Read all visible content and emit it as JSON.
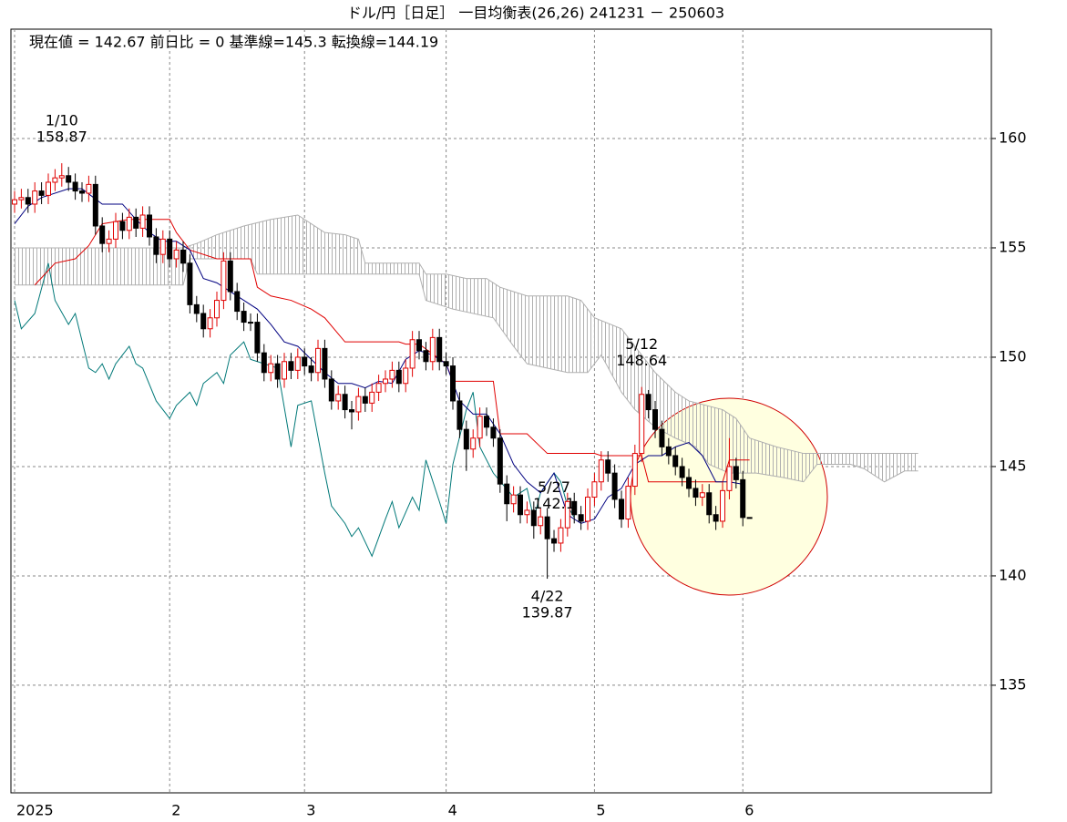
{
  "chart_data": {
    "type": "candlestick",
    "title": "ドル/円［日足］ 一目均衡表(26,26)  241231 － 250603",
    "subtitle": "現在値 = 142.67  前日比 = 0   基準線=145.3   転換線=144.19",
    "xlim": [
      -0.54,
      144.86
    ],
    "ylim": [
      130.08,
      165.0
    ],
    "xticks": [
      {
        "value": 0,
        "label": "2025"
      },
      {
        "value": 23,
        "label": "2"
      },
      {
        "value": 43,
        "label": "3"
      },
      {
        "value": 64,
        "label": "4"
      },
      {
        "value": 86,
        "label": "5"
      },
      {
        "value": 108,
        "label": "6"
      }
    ],
    "yticks": [
      135,
      140,
      145,
      150,
      155,
      160
    ],
    "grid": true,
    "up_color": "#e00000",
    "down_color": "#000000",
    "candles": {
      "x": [
        0,
        1,
        2,
        3,
        4,
        5,
        6,
        7,
        8,
        9,
        10,
        11,
        12,
        13,
        14,
        15,
        16,
        17,
        18,
        19,
        20,
        21,
        22,
        23,
        24,
        25,
        26,
        27,
        28,
        29,
        30,
        31,
        32,
        33,
        34,
        35,
        36,
        37,
        38,
        39,
        40,
        41,
        42,
        43,
        44,
        45,
        46,
        47,
        48,
        49,
        50,
        51,
        52,
        53,
        54,
        55,
        56,
        57,
        58,
        59,
        60,
        61,
        62,
        63,
        64,
        65,
        66,
        67,
        68,
        69,
        70,
        71,
        72,
        73,
        74,
        75,
        76,
        77,
        78,
        79,
        80,
        81,
        82,
        83,
        84,
        85,
        86,
        87,
        88,
        89,
        90,
        91,
        92,
        93,
        94,
        95,
        96,
        97,
        98,
        99,
        100,
        101,
        102,
        103,
        104,
        105,
        106,
        107,
        108,
        109
      ],
      "open": [
        157.0,
        157.2,
        157.3,
        157.0,
        157.6,
        157.4,
        158.0,
        158.2,
        158.3,
        158.0,
        157.6,
        157.5,
        157.9,
        156.0,
        155.2,
        155.4,
        156.2,
        155.8,
        156.4,
        155.9,
        156.5,
        155.5,
        154.7,
        155.4,
        154.5,
        154.9,
        154.3,
        152.4,
        152.0,
        151.3,
        151.8,
        152.6,
        154.4,
        153.0,
        152.1,
        151.6,
        151.6,
        150.2,
        149.3,
        149.7,
        149.0,
        149.8,
        149.4,
        150.0,
        149.6,
        149.3,
        150.4,
        149.0,
        148.0,
        148.3,
        147.6,
        147.5,
        148.2,
        147.9,
        148.4,
        148.8,
        149.0,
        149.4,
        148.8,
        149.5,
        150.8,
        150.3,
        149.8,
        150.9,
        149.8,
        149.6,
        148.0,
        146.7,
        145.8,
        146.3,
        147.3,
        146.8,
        146.3,
        144.2,
        143.3,
        143.7,
        142.8,
        143.0,
        142.3,
        142.7,
        141.7,
        141.5,
        142.2,
        143.4,
        142.8,
        142.5,
        143.6,
        144.3,
        145.3,
        144.7,
        143.5,
        142.6,
        144.1,
        145.6,
        148.3,
        147.6,
        146.7,
        145.9,
        145.5,
        145.0,
        144.5,
        144.0,
        143.6,
        143.8,
        142.8,
        142.5,
        143.9,
        145.0,
        144.4,
        142.67
      ],
      "high": [
        157.6,
        157.7,
        157.7,
        158.0,
        158.0,
        158.4,
        158.6,
        158.87,
        158.7,
        158.4,
        158.0,
        158.3,
        158.3,
        156.4,
        155.8,
        156.6,
        156.6,
        156.8,
        156.8,
        156.9,
        156.9,
        155.9,
        155.8,
        155.8,
        155.3,
        155.3,
        154.7,
        152.8,
        152.4,
        152.2,
        153.0,
        154.8,
        154.8,
        153.4,
        152.5,
        152.0,
        152.0,
        150.6,
        150.1,
        150.1,
        150.2,
        150.2,
        150.4,
        150.4,
        150.0,
        150.8,
        150.8,
        149.4,
        148.7,
        148.7,
        148.0,
        148.6,
        148.6,
        148.8,
        149.2,
        149.4,
        149.8,
        149.8,
        149.9,
        151.2,
        151.2,
        150.7,
        151.3,
        151.3,
        150.2,
        150.0,
        148.4,
        147.1,
        146.7,
        147.7,
        147.7,
        147.2,
        146.7,
        144.6,
        144.1,
        144.1,
        143.4,
        143.4,
        143.1,
        143.1,
        142.1,
        142.6,
        143.8,
        143.8,
        143.2,
        144.0,
        144.7,
        145.7,
        145.7,
        145.1,
        143.9,
        144.5,
        146.0,
        148.64,
        148.5,
        148.0,
        147.1,
        146.3,
        145.9,
        145.4,
        144.9,
        144.4,
        144.2,
        144.2,
        143.2,
        144.3,
        146.3,
        145.4,
        144.8,
        142.67
      ],
      "low": [
        156.6,
        156.8,
        156.6,
        156.6,
        157.0,
        157.0,
        157.6,
        157.8,
        157.6,
        157.2,
        157.1,
        157.1,
        155.6,
        154.8,
        154.8,
        155.0,
        155.4,
        155.4,
        155.5,
        155.5,
        155.1,
        154.3,
        154.3,
        154.1,
        154.1,
        153.9,
        152.0,
        151.6,
        150.9,
        150.9,
        151.4,
        152.2,
        152.6,
        151.7,
        151.2,
        151.2,
        149.8,
        148.9,
        148.9,
        148.6,
        148.6,
        149.0,
        149.0,
        149.2,
        148.9,
        148.9,
        148.6,
        147.6,
        147.6,
        147.2,
        146.7,
        147.1,
        147.5,
        147.5,
        148.0,
        148.4,
        148.6,
        148.4,
        148.4,
        149.1,
        149.9,
        149.4,
        149.4,
        149.4,
        149.2,
        147.6,
        146.3,
        144.8,
        145.4,
        145.9,
        146.4,
        145.9,
        143.8,
        142.5,
        142.9,
        142.4,
        142.4,
        141.7,
        141.9,
        139.87,
        141.1,
        141.1,
        141.8,
        142.4,
        142.1,
        142.1,
        143.2,
        143.9,
        144.3,
        143.1,
        142.2,
        142.2,
        143.7,
        145.2,
        147.2,
        146.3,
        145.5,
        145.1,
        144.6,
        144.1,
        143.6,
        143.2,
        143.2,
        142.4,
        142.1,
        142.2,
        143.5,
        144.0,
        142.27,
        142.67
      ],
      "close": [
        157.2,
        157.3,
        157.0,
        157.6,
        157.4,
        158.0,
        158.2,
        158.3,
        158.0,
        157.6,
        157.5,
        157.9,
        156.0,
        155.2,
        155.4,
        156.2,
        155.8,
        156.4,
        155.9,
        156.5,
        155.5,
        154.7,
        155.4,
        154.5,
        154.9,
        154.3,
        152.4,
        152.0,
        151.3,
        151.8,
        152.6,
        154.4,
        153.0,
        152.1,
        151.6,
        151.6,
        150.2,
        149.3,
        149.7,
        149.0,
        149.8,
        149.4,
        150.0,
        149.6,
        149.3,
        150.4,
        149.0,
        148.0,
        148.3,
        147.6,
        147.5,
        148.2,
        147.9,
        148.4,
        148.8,
        149.0,
        149.4,
        148.8,
        149.5,
        150.8,
        150.3,
        149.8,
        150.9,
        149.8,
        149.6,
        148.0,
        146.7,
        145.8,
        146.3,
        147.3,
        146.8,
        146.3,
        144.2,
        143.3,
        143.7,
        142.8,
        143.0,
        142.3,
        142.7,
        141.7,
        141.5,
        142.2,
        143.4,
        142.8,
        142.5,
        143.6,
        144.3,
        145.3,
        144.7,
        143.5,
        142.6,
        144.1,
        145.6,
        148.3,
        147.6,
        146.7,
        145.9,
        145.5,
        145.0,
        144.5,
        144.0,
        143.6,
        143.8,
        142.8,
        142.5,
        143.9,
        145.0,
        144.4,
        142.67,
        142.67
      ]
    },
    "lines": [
      {
        "color": "#007878",
        "x": [
          0,
          1,
          3,
          5,
          6,
          8,
          9,
          11,
          12,
          13,
          14,
          15,
          17,
          18,
          19,
          21,
          23,
          24,
          26,
          27,
          28,
          30,
          31,
          32,
          34,
          35,
          37,
          39,
          41,
          42,
          44,
          46,
          47,
          49,
          50,
          51,
          53,
          55,
          56,
          57,
          59,
          60,
          61,
          63,
          64,
          65,
          67,
          68,
          69,
          71,
          74,
          76,
          77,
          78,
          80,
          81,
          82,
          83
        ],
        "values": [
          152.6,
          151.3,
          152.0,
          154.3,
          152.6,
          151.5,
          152.0,
          149.5,
          149.3,
          149.7,
          149.0,
          149.7,
          150.5,
          149.7,
          149.5,
          148.0,
          147.2,
          147.8,
          148.4,
          147.8,
          148.8,
          149.3,
          148.8,
          150.1,
          150.7,
          149.9,
          149.7,
          149.5,
          145.9,
          147.8,
          148.0,
          144.7,
          143.2,
          142.4,
          141.8,
          142.2,
          140.9,
          142.6,
          143.4,
          142.2,
          143.6,
          143.0,
          145.3,
          143.4,
          142.4,
          145.1,
          147.6,
          148.4,
          145.9,
          144.7,
          143.6,
          144.0,
          142.6,
          143.8,
          144.7,
          144.3,
          143.2,
          142.67
        ]
      },
      {
        "color": "#e00000",
        "x": [
          3,
          6,
          9,
          11,
          13,
          17,
          23,
          24,
          26,
          30,
          35,
          36,
          38,
          41,
          44,
          46,
          49,
          57,
          58,
          60,
          64,
          65,
          71,
          72,
          76,
          79,
          86,
          87,
          93,
          94,
          105,
          106,
          109
        ],
        "values": [
          153.3,
          154.3,
          154.5,
          155.1,
          156.1,
          156.3,
          156.3,
          155.7,
          154.9,
          154.5,
          154.5,
          153.2,
          152.8,
          152.6,
          152.2,
          151.8,
          150.7,
          150.7,
          150.6,
          150.6,
          149.7,
          148.9,
          148.9,
          146.5,
          146.5,
          145.6,
          145.6,
          145.5,
          145.5,
          144.3,
          144.3,
          145.3,
          145.3
        ]
      },
      {
        "color": "#000080",
        "x": [
          0,
          2,
          4,
          8,
          10,
          13,
          16,
          18,
          20,
          22,
          24,
          26,
          28,
          30,
          32,
          34,
          36,
          38,
          40,
          42,
          44,
          46,
          48,
          50,
          52,
          54,
          56,
          58,
          60,
          62,
          64,
          66,
          68,
          70,
          72,
          74,
          76,
          78,
          80,
          82,
          84,
          86,
          88,
          90,
          92,
          94,
          96,
          98,
          100,
          102,
          104,
          106,
          108
        ],
        "values": [
          156.1,
          156.9,
          157.3,
          157.7,
          157.7,
          157.0,
          157.0,
          156.3,
          155.7,
          155.3,
          155.3,
          154.9,
          153.6,
          153.4,
          153.0,
          152.6,
          152.2,
          151.5,
          150.7,
          150.5,
          149.9,
          149.3,
          148.8,
          148.8,
          148.6,
          148.9,
          148.8,
          149.9,
          150.3,
          150.1,
          149.7,
          148.0,
          147.4,
          147.4,
          146.5,
          145.1,
          144.3,
          143.8,
          144.7,
          142.8,
          142.4,
          142.6,
          143.6,
          144.0,
          145.1,
          145.5,
          145.5,
          145.9,
          146.1,
          145.5,
          144.3,
          144.3,
          144.19
        ]
      }
    ],
    "cloud": {
      "color": "#b0b0b0",
      "upper": {
        "x": [
          0,
          25,
          27,
          30,
          34,
          38,
          42,
          44,
          46,
          49,
          51,
          52,
          60,
          61,
          64,
          67,
          70,
          72,
          74,
          76,
          82,
          84,
          86,
          90,
          92,
          95,
          98,
          100,
          105,
          107,
          109,
          113,
          117,
          134
        ],
        "values": [
          155.0,
          155.0,
          155.2,
          155.6,
          156.0,
          156.3,
          156.5,
          156.1,
          155.7,
          155.6,
          155.4,
          154.3,
          154.3,
          153.8,
          153.8,
          153.6,
          153.6,
          153.2,
          153.0,
          152.8,
          152.8,
          152.6,
          151.8,
          151.3,
          150.5,
          149.3,
          148.4,
          148.0,
          147.6,
          147.2,
          146.3,
          145.9,
          145.6,
          145.6
        ]
      },
      "lower": {
        "x": [
          0,
          25,
          26,
          35,
          36,
          60,
          61,
          65,
          71,
          74,
          76,
          82,
          85,
          87,
          90,
          92,
          95,
          98,
          101,
          103,
          106,
          110,
          114,
          117,
          119,
          124,
          126,
          129,
          132,
          134
        ],
        "values": [
          153.3,
          153.3,
          154.5,
          154.5,
          153.8,
          153.8,
          152.6,
          152.2,
          151.8,
          150.5,
          149.7,
          149.3,
          149.3,
          150.1,
          148.4,
          147.6,
          146.8,
          146.3,
          145.9,
          145.1,
          144.7,
          144.7,
          144.5,
          144.3,
          145.1,
          145.1,
          144.9,
          144.3,
          144.8,
          144.8
        ]
      }
    },
    "annotations": [
      {
        "text": "1/10",
        "value": 158.87
      },
      {
        "text": "4/22",
        "value": 139.87
      },
      {
        "text": "5/12",
        "value": 148.64
      },
      {
        "text": "5/27",
        "value": 142.1
      }
    ]
  }
}
